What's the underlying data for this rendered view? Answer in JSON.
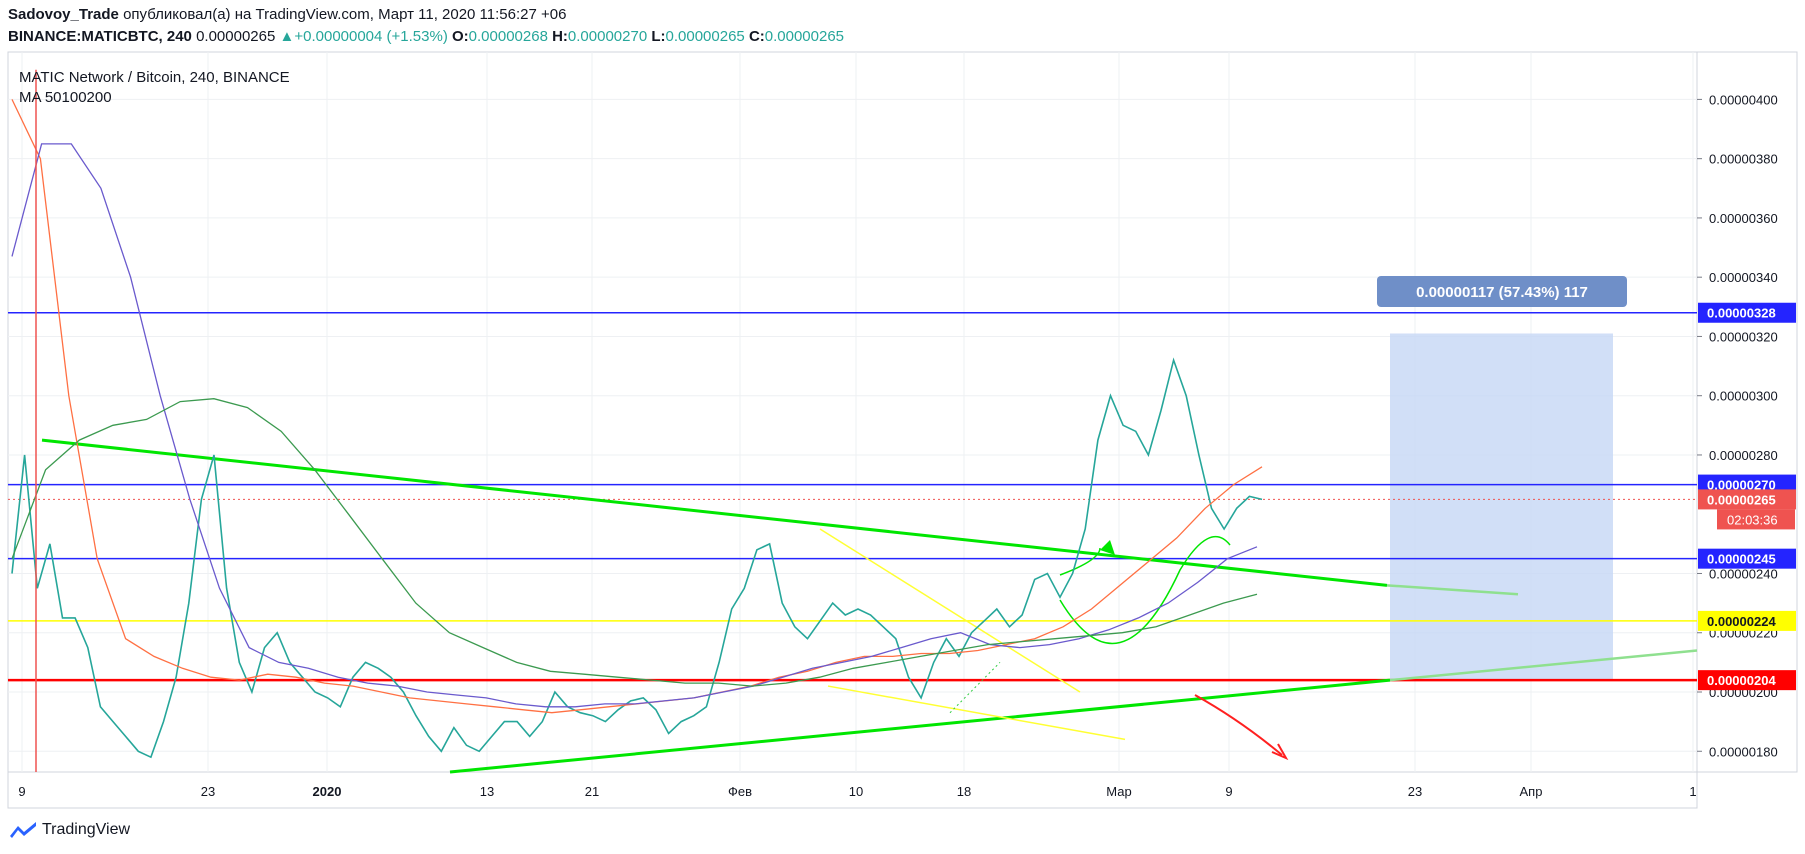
{
  "header": {
    "author": "Sadovoy_Trade",
    "published_text": "опубликовал(а) на TradingView.com, Март 11, 2020 11:56:27 +06",
    "symbol": "BINANCE:MATICBTC, 240",
    "price": "0.00000265",
    "change": "+0.00000004 (+1.53%)",
    "o_label": "O:",
    "o_value": "0.00000268",
    "h_label": "H:",
    "h_value": "0.00000270",
    "l_label": "L:",
    "l_value": "0.00000265",
    "c_label": "C:",
    "c_value": "0.00000265"
  },
  "footer": {
    "brand": "TradingView"
  },
  "chart_data": {
    "type": "line",
    "title": "MATIC Network / Bitcoin, 240, BINANCE",
    "subtitle": "MA 50100200",
    "y_ticks": [
      "0.00000400",
      "0.00000380",
      "0.00000360",
      "0.00000340",
      "0.00000320",
      "0.00000300",
      "0.00000280",
      "0.00000240",
      "0.00000220",
      "0.00000200",
      "0.00000180"
    ],
    "y_tick_values": [
      400,
      380,
      360,
      340,
      320,
      300,
      280,
      240,
      220,
      200,
      180
    ],
    "x_ticks": [
      "9",
      "23",
      "2020",
      "13",
      "21",
      "Фев",
      "10",
      "18",
      "Мар",
      "9",
      "23",
      "Апр",
      "1"
    ],
    "ylim": [
      173,
      416
    ],
    "price_unit": "1e-8 BTC",
    "horizontal_levels": [
      {
        "label": "0.00000328",
        "value": 328,
        "color": "#2424ff"
      },
      {
        "label": "0.00000270",
        "value": 270,
        "color": "#2424ff"
      },
      {
        "label": "0.00000245",
        "value": 245,
        "color": "#2424ff"
      },
      {
        "label": "0.00000224",
        "value": 224,
        "color": "#ffff00"
      },
      {
        "label": "0.00000204",
        "value": 204,
        "color": "#ff0000"
      }
    ],
    "last_price": {
      "label": "0.00000265",
      "value": 265,
      "countdown": "02:03:36",
      "color": "#ef5350"
    },
    "measure_box": {
      "label": "0.00000117 (57.43%) 117",
      "from": 204,
      "to": 321
    },
    "series": [
      {
        "values": [
          240,
          280,
          235,
          250,
          225,
          225,
          215,
          195,
          190,
          185,
          180,
          178,
          190,
          205,
          230,
          265,
          280,
          235,
          210,
          200,
          215,
          220,
          210,
          205,
          200,
          198,
          195,
          205,
          210,
          208,
          205,
          200,
          192,
          185,
          180,
          188,
          182,
          180,
          185,
          190,
          190,
          185,
          190,
          200,
          195,
          193,
          192,
          190,
          194,
          197,
          198,
          194,
          186,
          190,
          192,
          195,
          210,
          228,
          235,
          248,
          250,
          230,
          222,
          218,
          224,
          230,
          226,
          228,
          226,
          222,
          218,
          205,
          198,
          210,
          218,
          212,
          220,
          224,
          228,
          222,
          226,
          238,
          240,
          232,
          240,
          255,
          285,
          300,
          290,
          288,
          280,
          295,
          312,
          300,
          280,
          262,
          255,
          262,
          266,
          265
        ],
        "color": "#26a69a"
      },
      {
        "name": "MA 50",
        "values": [
          400,
          380,
          300,
          245,
          218,
          212,
          208,
          205,
          204,
          206,
          205,
          203,
          202,
          200,
          198,
          197,
          196,
          195,
          194,
          193,
          194,
          195,
          196,
          197,
          198,
          200,
          202,
          205,
          207,
          210,
          212,
          212,
          213,
          213,
          214,
          216,
          218,
          222,
          228,
          236,
          244,
          252,
          262,
          270,
          276
        ],
        "color": "#ff7043"
      },
      {
        "name": "MA 100",
        "values": [
          347,
          385,
          385,
          370,
          340,
          300,
          265,
          235,
          215,
          210,
          208,
          205,
          203,
          202,
          200,
          199,
          198,
          196,
          195,
          195,
          196,
          196,
          197,
          198,
          200,
          202,
          205,
          208,
          210,
          212,
          215,
          218,
          220,
          216,
          215,
          216,
          218,
          221,
          225,
          230,
          237,
          245,
          249
        ],
        "color": "#6a5acd"
      },
      {
        "name": "MA 200",
        "values": [
          245,
          275,
          285,
          290,
          292,
          298,
          299,
          296,
          288,
          275,
          260,
          245,
          230,
          220,
          215,
          210,
          207,
          206,
          205,
          204,
          203,
          203,
          202,
          203,
          205,
          208,
          210,
          212,
          214,
          216,
          217,
          218,
          219,
          220,
          222,
          226,
          230,
          233
        ],
        "color": "#3c9a50"
      }
    ]
  }
}
